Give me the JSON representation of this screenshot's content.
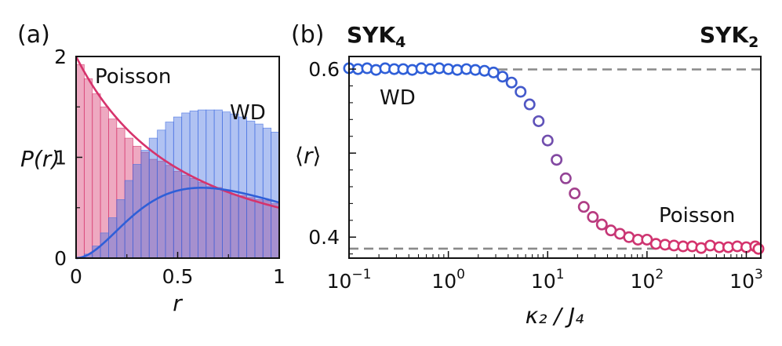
{
  "chart_data": [
    {
      "type": "bar",
      "panel": "(a)",
      "xlabel": "r",
      "ylabel": "P(r)",
      "xlim": [
        0,
        1
      ],
      "ylim": [
        0,
        2
      ],
      "xticks": [
        "0",
        "0.5",
        "1"
      ],
      "yticks": [
        "0",
        "1",
        "2"
      ],
      "bin_edges": [
        0,
        0.04,
        0.08,
        0.12,
        0.16,
        0.2,
        0.24,
        0.28,
        0.32,
        0.36,
        0.4,
        0.44,
        0.48,
        0.52,
        0.56,
        0.6,
        0.64,
        0.68,
        0.72,
        0.76,
        0.8,
        0.84,
        0.88,
        0.92,
        0.96,
        1.0
      ],
      "series": [
        {
          "name": "Poisson",
          "color": "#d6336c",
          "values": [
            1.92,
            1.78,
            1.63,
            1.5,
            1.38,
            1.29,
            1.19,
            1.11,
            1.05,
            0.98,
            0.96,
            0.92,
            0.86,
            0.82,
            0.79,
            0.75,
            0.71,
            0.7,
            0.67,
            0.63,
            0.62,
            0.6,
            0.58,
            0.57,
            0.54
          ],
          "curve": "2/(1+r)^2"
        },
        {
          "name": "WD",
          "color": "#2f5fd8",
          "values": [
            0.01,
            0.04,
            0.12,
            0.25,
            0.4,
            0.58,
            0.77,
            0.93,
            1.07,
            1.19,
            1.27,
            1.35,
            1.4,
            1.44,
            1.46,
            1.47,
            1.47,
            1.47,
            1.45,
            1.43,
            1.4,
            1.36,
            1.33,
            1.29,
            1.25
          ],
          "curve": "(81*sqrt(3)/(4*pi))*(r+r^2)^2/(1+r+r^2)^4"
        }
      ]
    },
    {
      "type": "scatter",
      "panel": "(b)",
      "xlabel": "κ₂ / J₄",
      "ylabel": "⟨r⟩",
      "xscale": "log",
      "xlim": [
        0.1,
        1400
      ],
      "ylim": [
        0.375,
        0.615
      ],
      "xtick_major": [
        0.1,
        1,
        10,
        100,
        1000
      ],
      "yticks": [
        "0.4",
        "0.6"
      ],
      "reference_lines": [
        {
          "name": "WD",
          "value": 0.5996
        },
        {
          "name": "Poisson",
          "value": 0.3863
        }
      ],
      "x": [
        0.1,
        0.123,
        0.152,
        0.187,
        0.231,
        0.285,
        0.351,
        0.433,
        0.534,
        0.658,
        0.811,
        1.0,
        1.23,
        1.52,
        1.87,
        2.31,
        2.85,
        3.51,
        4.33,
        5.34,
        6.58,
        8.11,
        10.0,
        12.3,
        15.2,
        18.7,
        23.1,
        28.5,
        35.1,
        43.3,
        53.4,
        65.8,
        81.1,
        100,
        123,
        152,
        187,
        231,
        285,
        351,
        433,
        534,
        658,
        811,
        1000,
        1230,
        1400
      ],
      "y": [
        0.601,
        0.6,
        0.601,
        0.599,
        0.601,
        0.6,
        0.6,
        0.599,
        0.601,
        0.6,
        0.601,
        0.6,
        0.599,
        0.6,
        0.599,
        0.598,
        0.596,
        0.591,
        0.584,
        0.573,
        0.558,
        0.538,
        0.515,
        0.492,
        0.47,
        0.452,
        0.436,
        0.424,
        0.415,
        0.408,
        0.404,
        0.4,
        0.397,
        0.397,
        0.392,
        0.391,
        0.39,
        0.389,
        0.389,
        0.387,
        0.39,
        0.388,
        0.388,
        0.389,
        0.388,
        0.389,
        0.386
      ],
      "annotations": {
        "left_title": "SYK",
        "left_sub": "4",
        "right_title": "SYK",
        "right_sub": "2",
        "wd_label": "WD",
        "poisson_label": "Poisson"
      }
    }
  ]
}
